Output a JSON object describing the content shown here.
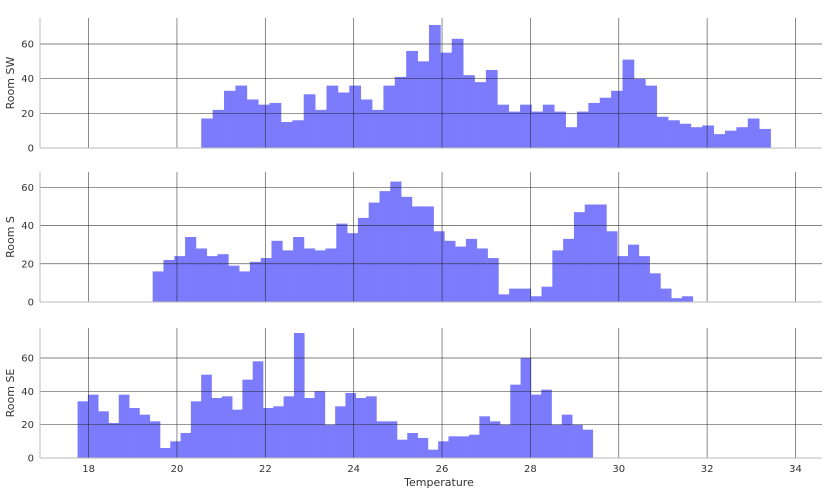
{
  "chart_data": {
    "type": "histogram",
    "xlabel": "Temperature",
    "xlim": [
      16.9,
      34.6
    ],
    "xticks": [
      18,
      20,
      22,
      24,
      26,
      28,
      30,
      32,
      34
    ],
    "grid": true,
    "bar_color": "#7b7bfc",
    "grid_color": "#222222",
    "panels": [
      {
        "ylabel": "Room SW",
        "ylim": [
          0,
          75
        ],
        "yticks": [
          0,
          20,
          40,
          60
        ],
        "bin_start": 20.55,
        "bin_width": 0.2577,
        "values": [
          17,
          22,
          33,
          36,
          28,
          25,
          26,
          15,
          16,
          31,
          22,
          36,
          32,
          36,
          28,
          22,
          36,
          41,
          56,
          50,
          71,
          55,
          63,
          42,
          38,
          45,
          25,
          21,
          25,
          21,
          25,
          21,
          12,
          21,
          26,
          29,
          33,
          51,
          40,
          36,
          18,
          16,
          14,
          12,
          13,
          8,
          10,
          12,
          17,
          11
        ]
      },
      {
        "ylabel": "Room S",
        "ylim": [
          0,
          68
        ],
        "yticks": [
          0,
          20,
          40,
          60
        ],
        "bin_start": 19.45,
        "bin_width": 0.2445,
        "values": [
          16,
          22,
          24,
          34,
          28,
          24,
          25,
          19,
          16,
          21,
          23,
          32,
          27,
          34,
          28,
          27,
          28,
          41,
          36,
          44,
          52,
          58,
          63,
          55,
          50,
          50,
          37,
          32,
          29,
          33,
          28,
          23,
          4,
          7,
          7,
          3,
          8,
          27,
          33,
          47,
          51,
          51,
          37,
          24,
          30,
          24,
          15,
          7,
          2,
          3
        ]
      },
      {
        "ylabel": "Room SE",
        "ylim": [
          0,
          78
        ],
        "yticks": [
          0,
          20,
          40,
          60
        ],
        "bin_start": 17.75,
        "bin_width": 0.2332,
        "values": [
          34,
          38,
          28,
          21,
          38,
          30,
          26,
          22,
          6,
          10,
          15,
          34,
          50,
          36,
          37,
          29,
          47,
          58,
          30,
          31,
          37,
          75,
          36,
          40,
          20,
          31,
          39,
          36,
          37,
          22,
          22,
          11,
          15,
          12,
          5,
          10,
          13,
          13,
          14,
          25,
          22,
          20,
          44,
          60,
          38,
          41,
          20,
          26,
          20,
          17
        ]
      }
    ]
  }
}
